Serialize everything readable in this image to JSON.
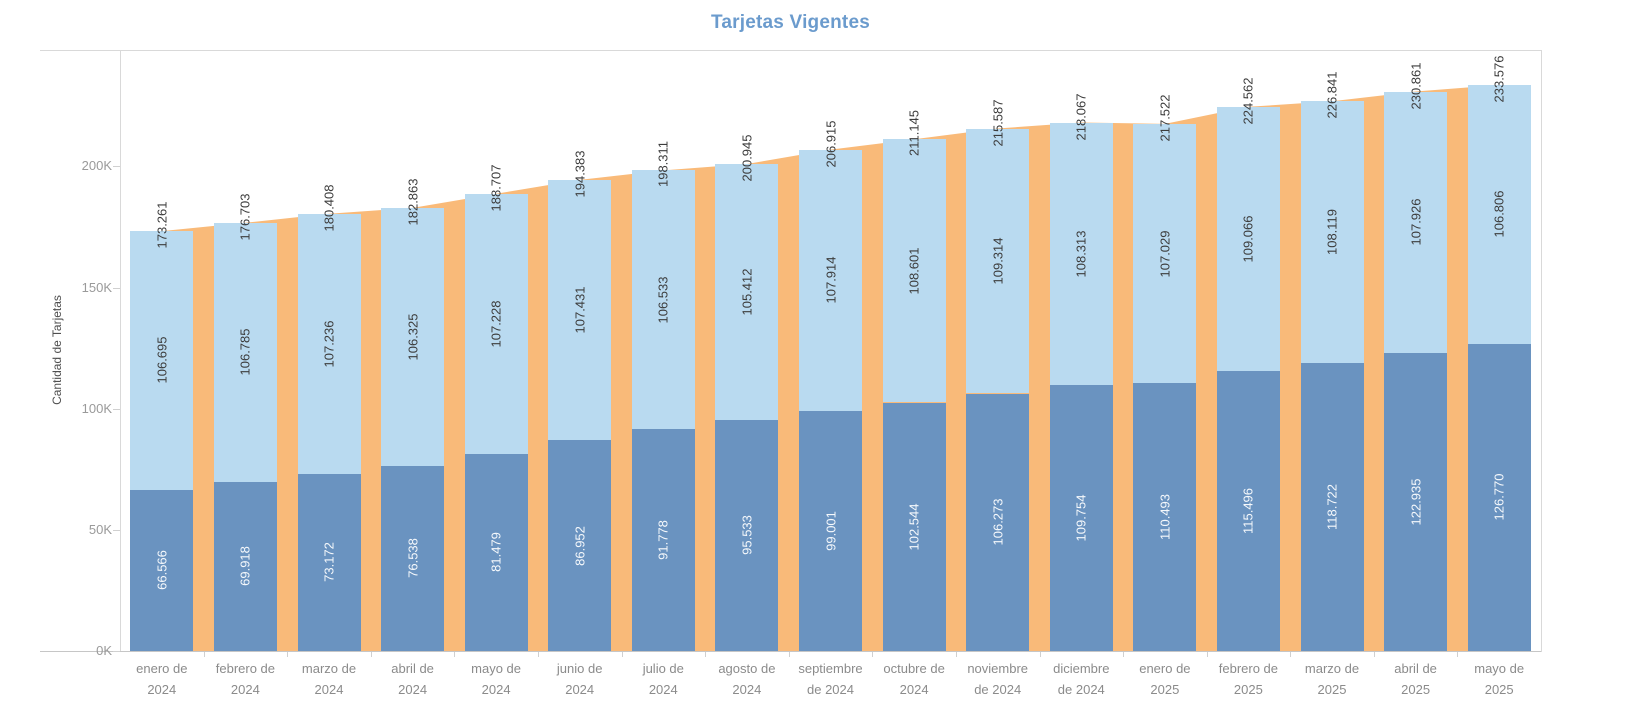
{
  "title": "Tarjetas Vigentes",
  "chart_data": {
    "type": "bar",
    "subtype": "stacked-bars-with-total-area-overlay",
    "title": "Tarjetas Vigentes",
    "xlabel": "",
    "ylabel": "Cantidad de Tarjetas",
    "ylim": [
      0,
      248000
    ],
    "grid": false,
    "legend": "none",
    "yticks": [
      {
        "value": 0,
        "label": "0K"
      },
      {
        "value": 50000,
        "label": "50K"
      },
      {
        "value": 100000,
        "label": "100K"
      },
      {
        "value": 150000,
        "label": "150K"
      },
      {
        "value": 200000,
        "label": "200K"
      }
    ],
    "categories": [
      {
        "label": "enero de 2024",
        "line1": "enero de",
        "line2": "2024"
      },
      {
        "label": "febrero de 2024",
        "line1": "febrero de",
        "line2": "2024"
      },
      {
        "label": "marzo de 2024",
        "line1": "marzo de",
        "line2": "2024"
      },
      {
        "label": "abril de 2024",
        "line1": "abril de",
        "line2": "2024"
      },
      {
        "label": "mayo de 2024",
        "line1": "mayo de",
        "line2": "2024"
      },
      {
        "label": "junio de 2024",
        "line1": "junio de",
        "line2": "2024"
      },
      {
        "label": "julio de 2024",
        "line1": "julio de",
        "line2": "2024"
      },
      {
        "label": "agosto de 2024",
        "line1": "agosto de",
        "line2": "2024"
      },
      {
        "label": "septiembre de 2024",
        "line1": "septiembre",
        "line2": "de 2024"
      },
      {
        "label": "octubre de 2024",
        "line1": "octubre de",
        "line2": "2024"
      },
      {
        "label": "noviembre de 2024",
        "line1": "noviembre",
        "line2": "de 2024"
      },
      {
        "label": "diciembre de 2024",
        "line1": "diciembre",
        "line2": "de 2024"
      },
      {
        "label": "enero de 2025",
        "line1": "enero de",
        "line2": "2025"
      },
      {
        "label": "febrero de 2025",
        "line1": "febrero de",
        "line2": "2025"
      },
      {
        "label": "marzo de 2025",
        "line1": "marzo de",
        "line2": "2025"
      },
      {
        "label": "abril de 2025",
        "line1": "abril de",
        "line2": "2025"
      },
      {
        "label": "mayo de 2025",
        "line1": "mayo de",
        "line2": "2025"
      }
    ],
    "series": [
      {
        "name": "bottom-segment",
        "role": "stacked-bar-bottom",
        "color": "#6a93c0",
        "label_color": "#f6f9fc",
        "values": [
          66566,
          69918,
          73172,
          76538,
          81479,
          86952,
          91778,
          95533,
          99001,
          102544,
          106273,
          109754,
          110493,
          115496,
          118722,
          122935,
          126770
        ],
        "labels": [
          "66.566",
          "69.918",
          "73.172",
          "76.538",
          "81.479",
          "86.952",
          "91.778",
          "95.533",
          "99.001",
          "102.544",
          "106.273",
          "109.754",
          "110.493",
          "115.496",
          "118.722",
          "122.935",
          "126.770"
        ]
      },
      {
        "name": "top-segment",
        "role": "stacked-bar-top",
        "color": "#b9daf0",
        "label_color": "#3c3c3c",
        "values": [
          106695,
          106785,
          107236,
          106325,
          107228,
          107431,
          106533,
          105412,
          107914,
          108601,
          109314,
          108313,
          107029,
          109066,
          108119,
          107926,
          106806
        ],
        "labels": [
          "106.695",
          "106.785",
          "107.236",
          "106.325",
          "107.228",
          "107.431",
          "106.533",
          "105.412",
          "107.914",
          "108.601",
          "109.314",
          "108.313",
          "107.029",
          "109.066",
          "108.119",
          "107.926",
          "106.806"
        ]
      },
      {
        "name": "total",
        "role": "area-overlay",
        "color": "#f9ba79",
        "label_color": "#3c3c3c",
        "values": [
          173261,
          176703,
          180408,
          182863,
          188707,
          194383,
          198311,
          200945,
          206915,
          211145,
          215587,
          218067,
          217522,
          224562,
          226841,
          230861,
          233576
        ],
        "labels": [
          "173.261",
          "176.703",
          "180.408",
          "182.863",
          "188.707",
          "194.383",
          "198.311",
          "200.945",
          "206.915",
          "211.145",
          "215.587",
          "218.067",
          "217.522",
          "224.562",
          "226.841",
          "230.861",
          "233.576"
        ]
      }
    ],
    "colors": {
      "title": "#6b9bcd",
      "bar_bottom": "#6a93c0",
      "bar_top": "#b9daf0",
      "area": "#f9ba79",
      "axis_text": "#9a9a9a",
      "x_label_text": "#8b8b8b",
      "border": "#d9d9d9"
    }
  }
}
